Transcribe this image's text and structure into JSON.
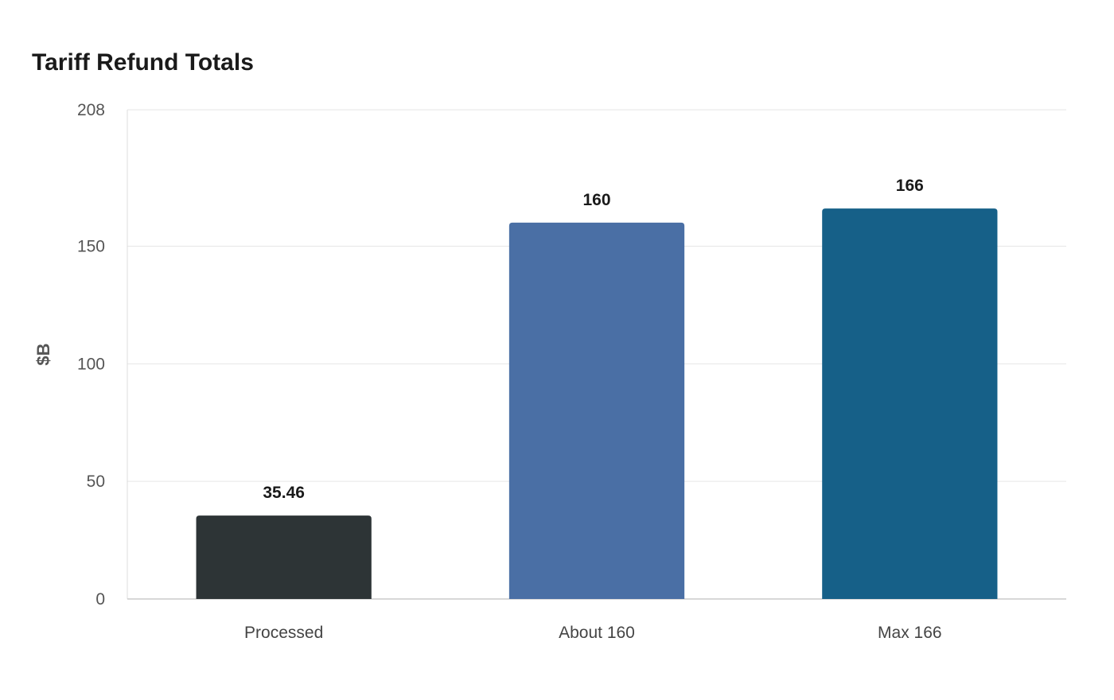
{
  "chart_data": {
    "type": "bar",
    "title": "Tariff Refund Totals",
    "xlabel": "",
    "ylabel": "$B",
    "categories": [
      "Processed",
      "About 160",
      "Max 166"
    ],
    "values": [
      35.46,
      160,
      166
    ],
    "value_labels": [
      "35.46",
      "160",
      "166"
    ],
    "colors": [
      "#2d3436",
      "#4a6fa5",
      "#166088"
    ],
    "ylim": [
      0,
      208
    ],
    "yticks": [
      0,
      50,
      100,
      150,
      208
    ],
    "ytick_labels": [
      "0",
      "50",
      "100",
      "150",
      "208"
    ],
    "grid": true,
    "legend": "none"
  }
}
